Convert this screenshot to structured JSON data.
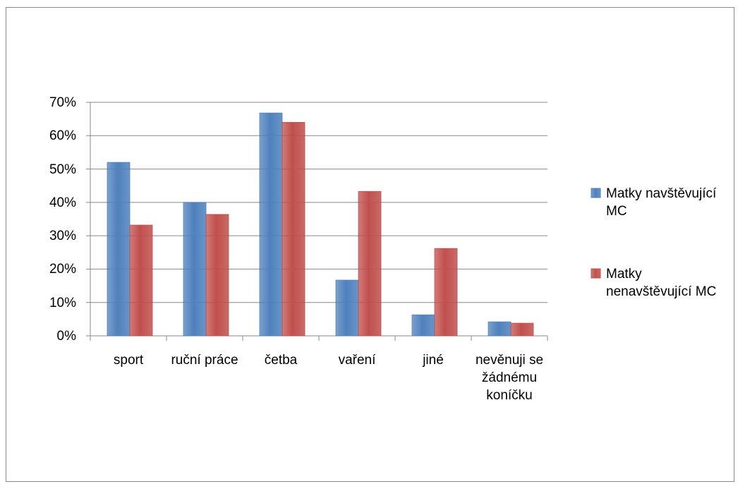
{
  "chart_data": {
    "type": "bar",
    "categories": [
      "sport",
      "ruční práce",
      "četba",
      "vaření",
      "jiné",
      "nevěnuji se žádnému koníčku"
    ],
    "series": [
      {
        "name": "Matky navštěvující MC",
        "color": "#4f81bd",
        "values": [
          52,
          40,
          66.8,
          16.7,
          6.3,
          4.2
        ]
      },
      {
        "name": "Matky nenavštěvující MC",
        "color": "#c0504d",
        "values": [
          33.2,
          36.4,
          64,
          43.3,
          26.2,
          3.8
        ]
      }
    ],
    "ylim": [
      0,
      70
    ],
    "yticks": [
      {
        "value": 0,
        "label": "0%"
      },
      {
        "value": 10,
        "label": "10%"
      },
      {
        "value": 20,
        "label": "20%"
      },
      {
        "value": 30,
        "label": "30%"
      },
      {
        "value": 40,
        "label": "40%"
      },
      {
        "value": 50,
        "label": "50%"
      },
      {
        "value": 60,
        "label": "60%"
      },
      {
        "value": 70,
        "label": "70%"
      }
    ],
    "grid": true,
    "legend": "right"
  }
}
